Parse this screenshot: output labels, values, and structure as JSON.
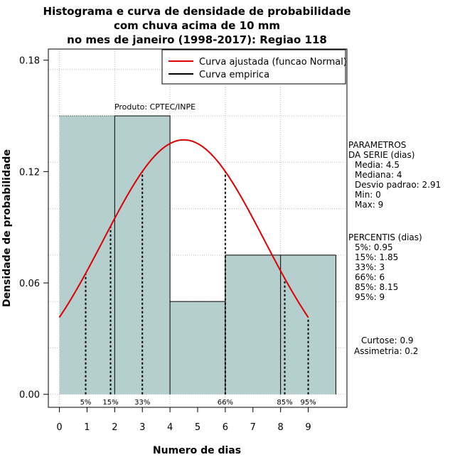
{
  "chart_data": {
    "type": "histogram",
    "title_lines": [
      "Histograma e curva de densidade de probabilidade",
      "com chuva acima de 10 mm",
      "no mes de janeiro (1998-2017): Regiao 118"
    ],
    "xlabel": "Numero de dias",
    "ylabel": "Densidade de probabilidade",
    "xlim": [
      -0.4,
      10.4
    ],
    "ylim": [
      -0.007,
      0.186
    ],
    "x_ticks": [
      "0",
      "1",
      "2",
      "3",
      "4",
      "5",
      "6",
      "7",
      "8",
      "9"
    ],
    "y_ticks": [
      "0.00",
      "0.06",
      "0.12",
      "0.18"
    ],
    "bars": [
      {
        "x0": 0,
        "x1": 2,
        "density": 0.15
      },
      {
        "x0": 2,
        "x1": 4,
        "density": 0.15
      },
      {
        "x0": 4,
        "x1": 6,
        "density": 0.05
      },
      {
        "x0": 6,
        "x1": 8,
        "density": 0.075
      },
      {
        "x0": 8,
        "x1": 10,
        "density": 0.075
      }
    ],
    "normal_curve": {
      "mean": 4.5,
      "sd": 2.91,
      "x_from": 0,
      "x_to": 9
    },
    "percentile_lines": [
      {
        "label": "5%",
        "x": 0.95
      },
      {
        "label": "15%",
        "x": 1.85
      },
      {
        "label": "33%",
        "x": 3
      },
      {
        "label": "66%",
        "x": 6
      },
      {
        "label": "85%",
        "x": 8.15
      },
      {
        "label": "95%",
        "x": 9
      }
    ],
    "legend": {
      "placement": "top-right",
      "entries": [
        {
          "label": "Curva ajustada (funcao Normal)",
          "color": "#dd0000"
        },
        {
          "label": "Curva empirica",
          "color": "#000000"
        }
      ]
    },
    "grid": true,
    "annotation": "Produto: CPTEC/INPE",
    "colors": {
      "bar_fill": "#b5cece",
      "curve": "#dd0000"
    }
  },
  "side_panel": {
    "parametros": [
      "PARAMETROS",
      "DA SERIE (dias)",
      "Media: 4.5",
      "Mediana: 4",
      "Desvio padrao: 2.91",
      "Min: 0",
      "Max: 9"
    ],
    "percentis": [
      "PERCENTIS (dias)",
      "5%: 0.95",
      "15%: 1.85",
      "33%: 3",
      "66%: 6",
      "85%: 8.15",
      "95%: 9"
    ],
    "shape": [
      "Curtose: 0.9",
      "Assimetria: 0.2"
    ]
  }
}
